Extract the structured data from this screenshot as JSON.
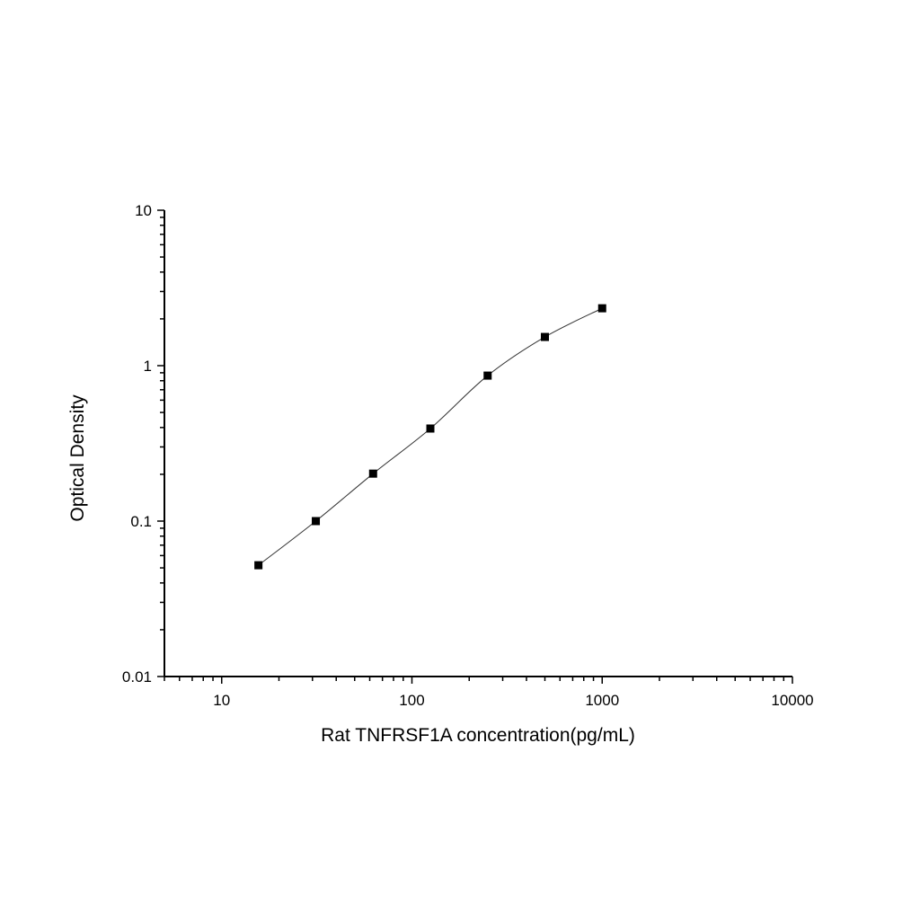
{
  "chart_data": {
    "type": "scatter",
    "title": "",
    "xlabel": "Rat TNFRSF1A concentration(pg/mL)",
    "ylabel": "Optical Density",
    "xscale": "log",
    "yscale": "log",
    "xlim": [
      5,
      10000
    ],
    "ylim": [
      0.01,
      10
    ],
    "xticks": [
      10,
      100,
      1000,
      10000
    ],
    "xtick_labels": [
      "10",
      "100",
      "1000",
      "10000"
    ],
    "yticks": [
      0.01,
      0.1,
      1,
      10
    ],
    "ytick_labels": [
      "0.01",
      "0.1",
      "1",
      "10"
    ],
    "grid": false,
    "series": [
      {
        "x": [
          15.6,
          31.25,
          62.5,
          125,
          250,
          500,
          1000
        ],
        "y": [
          0.052,
          0.1,
          0.202,
          0.394,
          0.863,
          1.53,
          2.34
        ],
        "marker": "square",
        "fit_line": true,
        "color": "#000000"
      }
    ]
  }
}
